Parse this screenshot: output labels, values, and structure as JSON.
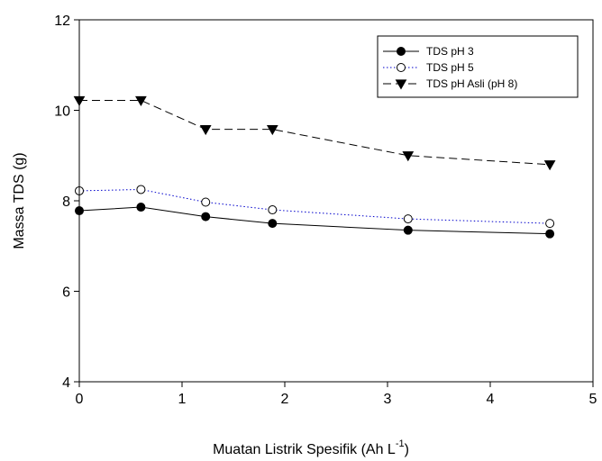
{
  "chart_data": {
    "type": "line",
    "title": "",
    "xlabel": "Muatan Listrik Spesifik (Ah L",
    "xlabel_superscript": "-1",
    "xlabel_suffix": ")",
    "ylabel": "Massa TDS (g)",
    "xlim": [
      0,
      5
    ],
    "ylim": [
      4,
      12
    ],
    "xticks": [
      "0",
      "1",
      "2",
      "3",
      "4",
      "5"
    ],
    "yticks": [
      "4",
      "6",
      "8",
      "10",
      "12"
    ],
    "grid": false,
    "legend_position": "top-right",
    "x": [
      0,
      0.6,
      1.23,
      1.88,
      3.2,
      4.58
    ],
    "series": [
      {
        "name": "TDS pH 3",
        "values": [
          7.78,
          7.86,
          7.65,
          7.5,
          7.35,
          7.27
        ],
        "line_style": "solid",
        "line_color": "#000000",
        "marker": "filled-circle"
      },
      {
        "name": "TDS pH 5",
        "values": [
          8.22,
          8.25,
          7.97,
          7.8,
          7.6,
          7.5
        ],
        "line_style": "dotted",
        "line_color": "#0000cc",
        "marker": "open-circle"
      },
      {
        "name": "TDS pH Asli (pH 8)",
        "values": [
          10.22,
          10.22,
          9.58,
          9.58,
          9.0,
          8.8
        ],
        "line_style": "dashed",
        "line_color": "#000000",
        "marker": "filled-triangle-down"
      }
    ]
  }
}
